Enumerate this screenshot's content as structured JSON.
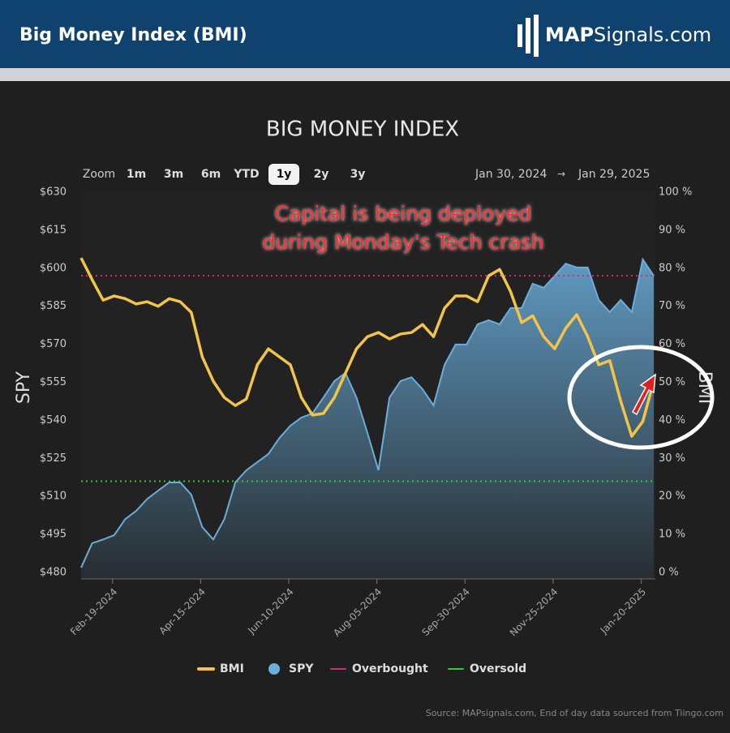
{
  "header": {
    "title": "Big Money Index (BMI)",
    "logo_bold": "MAP",
    "logo_rest": "Signals.com"
  },
  "chart_data": {
    "type": "line",
    "title": "BIG MONEY INDEX",
    "range_selector": {
      "label": "Zoom",
      "buttons": [
        "1m",
        "3m",
        "6m",
        "YTD",
        "1y",
        "2y",
        "3y"
      ],
      "selected_index": 4,
      "from": "Jan 30, 2024",
      "to": "Jan 29, 2025"
    },
    "annotations": [
      "Capital is being deployed",
      "during Monday's Tech crash"
    ],
    "y_label": "SPY",
    "y2_label": "BMI",
    "x": [
      "2024-01-30",
      "2024-02-06",
      "2024-02-13",
      "2024-02-20",
      "2024-02-27",
      "2024-03-05",
      "2024-03-12",
      "2024-03-19",
      "2024-03-26",
      "2024-04-02",
      "2024-04-09",
      "2024-04-16",
      "2024-04-23",
      "2024-04-30",
      "2024-05-07",
      "2024-05-14",
      "2024-05-21",
      "2024-05-28",
      "2024-06-04",
      "2024-06-11",
      "2024-06-18",
      "2024-06-25",
      "2024-07-02",
      "2024-07-09",
      "2024-07-16",
      "2024-07-23",
      "2024-07-30",
      "2024-08-06",
      "2024-08-13",
      "2024-08-20",
      "2024-08-27",
      "2024-09-03",
      "2024-09-10",
      "2024-09-17",
      "2024-09-24",
      "2024-10-01",
      "2024-10-08",
      "2024-10-15",
      "2024-10-22",
      "2024-10-29",
      "2024-11-05",
      "2024-11-12",
      "2024-11-19",
      "2024-11-26",
      "2024-12-03",
      "2024-12-10",
      "2024-12-17",
      "2024-12-24",
      "2024-12-31",
      "2025-01-07",
      "2025-01-14",
      "2025-01-21",
      "2025-01-28"
    ],
    "xlim": [
      "2024-01-30",
      "2025-01-29"
    ],
    "xticks": [
      {
        "value": "2024-02-19",
        "label": "Feb-19-2024"
      },
      {
        "value": "2024-04-15",
        "label": "Apr-15-2024"
      },
      {
        "value": "2024-06-10",
        "label": "Jun-10-2024"
      },
      {
        "value": "2024-08-05",
        "label": "Aug-05-2024"
      },
      {
        "value": "2024-09-30",
        "label": "Sep-30-2024"
      },
      {
        "value": "2024-11-25",
        "label": "Nov-25-2024"
      },
      {
        "value": "2025-01-20",
        "label": "Jan-20-2025"
      }
    ],
    "ylim": [
      480,
      630
    ],
    "yticks": [
      {
        "value": 480,
        "label": "$480"
      },
      {
        "value": 495,
        "label": "$495"
      },
      {
        "value": 510,
        "label": "$510"
      },
      {
        "value": 525,
        "label": "$525"
      },
      {
        "value": 540,
        "label": "$540"
      },
      {
        "value": 555,
        "label": "$555"
      },
      {
        "value": 570,
        "label": "$570"
      },
      {
        "value": 585,
        "label": "$585"
      },
      {
        "value": 600,
        "label": "$600"
      },
      {
        "value": 615,
        "label": "$615"
      },
      {
        "value": 630,
        "label": "$630"
      }
    ],
    "y2lim": [
      0,
      100
    ],
    "y2ticks": [
      {
        "value": 0,
        "label": "0 %"
      },
      {
        "value": 10,
        "label": "10 %"
      },
      {
        "value": 20,
        "label": "20 %"
      },
      {
        "value": 30,
        "label": "30 %"
      },
      {
        "value": 40,
        "label": "40 %"
      },
      {
        "value": 50,
        "label": "50 %"
      },
      {
        "value": 60,
        "label": "60 %"
      },
      {
        "value": 70,
        "label": "70 %"
      },
      {
        "value": 80,
        "label": "80 %"
      },
      {
        "value": 90,
        "label": "90 %"
      },
      {
        "value": 100,
        "label": "100 %"
      }
    ],
    "series": [
      {
        "name": "BMI",
        "type": "line",
        "axis": "y2",
        "color": "#f2c447",
        "values": [
          82.7,
          77,
          71.6,
          72.7,
          72,
          70.6,
          71.2,
          70,
          72,
          71.2,
          68.4,
          56.7,
          50.3,
          46,
          43.9,
          45.6,
          54.6,
          58.8,
          56.7,
          54.6,
          46,
          41.4,
          41.8,
          46,
          52.4,
          58.8,
          62,
          63.1,
          61.4,
          62.7,
          63.1,
          65.2,
          62,
          69.5,
          72.7,
          72.7,
          71.2,
          78,
          79.7,
          73.8,
          65.7,
          67.5,
          62,
          58.8,
          64.2,
          67.8,
          62,
          54.6,
          55.7,
          45,
          35.8,
          39.7,
          50.3
        ]
      },
      {
        "name": "SPY",
        "type": "area",
        "axis": "y",
        "color": "#6aaedc",
        "values": [
          481.9,
          491.5,
          493,
          494.7,
          501,
          504.3,
          509,
          512.3,
          515.5,
          515.5,
          510.7,
          497.9,
          493,
          501,
          515.5,
          520.3,
          523.5,
          526.7,
          533,
          537.9,
          541.1,
          542.7,
          549,
          555.5,
          558.7,
          549,
          535,
          520.3,
          549,
          555.5,
          557,
          552.3,
          545.9,
          561.9,
          569.9,
          569.9,
          577.9,
          579.5,
          577.9,
          584.3,
          584.3,
          593.9,
          592.3,
          597,
          601.8,
          600.3,
          600.3,
          587.5,
          582.7,
          587.5,
          582.7,
          603.5,
          597
        ]
      }
    ],
    "reference_lines": [
      {
        "name": "Overbought",
        "axis": "y2",
        "value": 78,
        "color": "#d0306a"
      },
      {
        "name": "Oversold",
        "axis": "y2",
        "value": 24,
        "color": "#33cc33"
      }
    ],
    "source": "Source: MAPsignals.com, End of day data sourced from Tiingo.com"
  }
}
